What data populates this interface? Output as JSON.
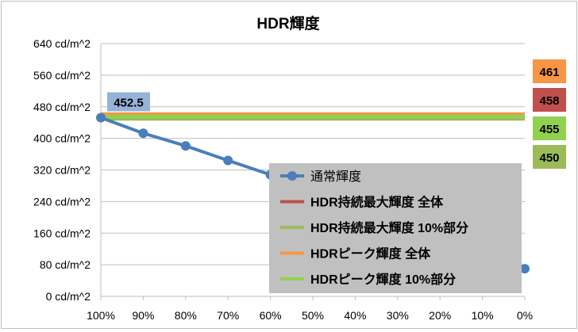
{
  "chart_data": {
    "type": "line",
    "title": "HDR輝度",
    "xlabel": "",
    "ylabel": "",
    "categories": [
      "100%",
      "90%",
      "80%",
      "70%",
      "60%",
      "50%",
      "40%",
      "30%",
      "20%",
      "10%",
      "0%"
    ],
    "y_ticks": [
      "0 cd/m^2",
      "80 cd/m^2",
      "160 cd/m^2",
      "240 cd/m^2",
      "320 cd/m^2",
      "400 cd/m^2",
      "480 cd/m^2",
      "560 cd/m^2",
      "640 cd/m^2"
    ],
    "ylim": [
      0,
      640
    ],
    "y_step": 80,
    "grid": true,
    "legend_position": "bottom-right",
    "series": [
      {
        "name": "通常輝度",
        "color": "#4a7ebb",
        "marker": true,
        "values": [
          452.5,
          413,
          381,
          344,
          308,
          270,
          232,
          192,
          154,
          114,
          70
        ],
        "data_labels": [
          {
            "index": 0,
            "text": "452.5"
          }
        ]
      },
      {
        "name": "HDR持続最大輝度 全体",
        "color": "#c0504d",
        "marker": false,
        "values": [
          458,
          458,
          458,
          458,
          458,
          458,
          458,
          458,
          458,
          458,
          458
        ],
        "end_label": "458",
        "label_bg": "#c0504d"
      },
      {
        "name": "HDR持続最大輝度 10%部分",
        "color": "#9bbb59",
        "marker": false,
        "values": [
          450,
          450,
          450,
          450,
          450,
          450,
          450,
          450,
          450,
          450,
          450
        ],
        "end_label": "450",
        "label_bg": "#9bbb59"
      },
      {
        "name": "HDRピーク輝度 全体",
        "color": "#f79646",
        "marker": false,
        "values": [
          461,
          461,
          461,
          461,
          461,
          461,
          461,
          461,
          461,
          461,
          461
        ],
        "end_label": "461",
        "label_bg": "#f79646"
      },
      {
        "name": "HDRピーク輝度 10%部分",
        "color": "#92d050",
        "marker": false,
        "values": [
          455,
          455,
          455,
          455,
          455,
          455,
          455,
          455,
          455,
          455,
          455
        ],
        "end_label": "455",
        "label_bg": "#92d050"
      }
    ]
  }
}
